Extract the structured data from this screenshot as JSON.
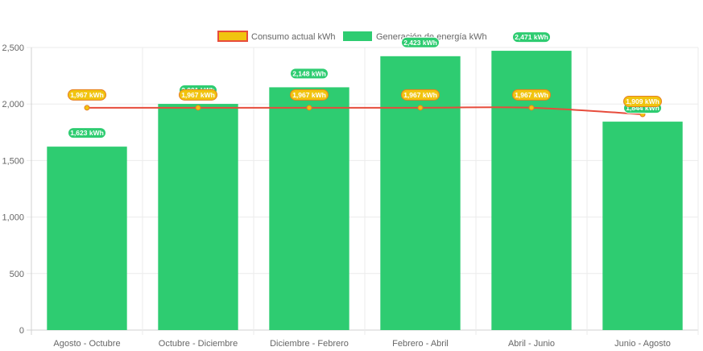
{
  "chart_data": {
    "type": "bar",
    "categories": [
      "Agosto - Octubre",
      "Octubre - Diciembre",
      "Diciembre - Febrero",
      "Febrero - Abril",
      "Abril - Junio",
      "Junio - Agosto"
    ],
    "series": [
      {
        "name": "Generación de energía kWh",
        "type": "bar",
        "values": [
          1623,
          2001,
          2148,
          2423,
          2471,
          1844
        ],
        "color": "#2ecc71",
        "labels": [
          "1,623 kWh",
          "2,001 kWh",
          "2,148 kWh",
          "2,423 kWh",
          "2,471 kWh",
          "1,844 kWh"
        ]
      },
      {
        "name": "Consumo actual kWh",
        "type": "line",
        "values": [
          1967,
          1967,
          1967,
          1967,
          1967,
          1909
        ],
        "color": "#e74c3c",
        "fill": "#f1c40f",
        "labels": [
          "1,967 kWh",
          "1,967 kWh",
          "1,967 kWh",
          "1,967 kWh",
          "1,967 kWh",
          "1,909 kWh"
        ]
      }
    ],
    "ylim": [
      0,
      2500
    ],
    "yticks": [
      0,
      500,
      1000,
      1500,
      2000,
      2500
    ],
    "ytick_labels": [
      "0",
      "500",
      "1,000",
      "1,500",
      "2,000",
      "2,500"
    ],
    "grid": true,
    "legend": "top-center",
    "title": "",
    "xlabel": "",
    "ylabel": ""
  },
  "legend": [
    {
      "label": "Consumo actual kWh",
      "color": "#f1c40f",
      "border": "#e74c3c"
    },
    {
      "label": "Generación de energía kWh",
      "color": "#2ecc71",
      "border": "#2ecc71"
    }
  ]
}
